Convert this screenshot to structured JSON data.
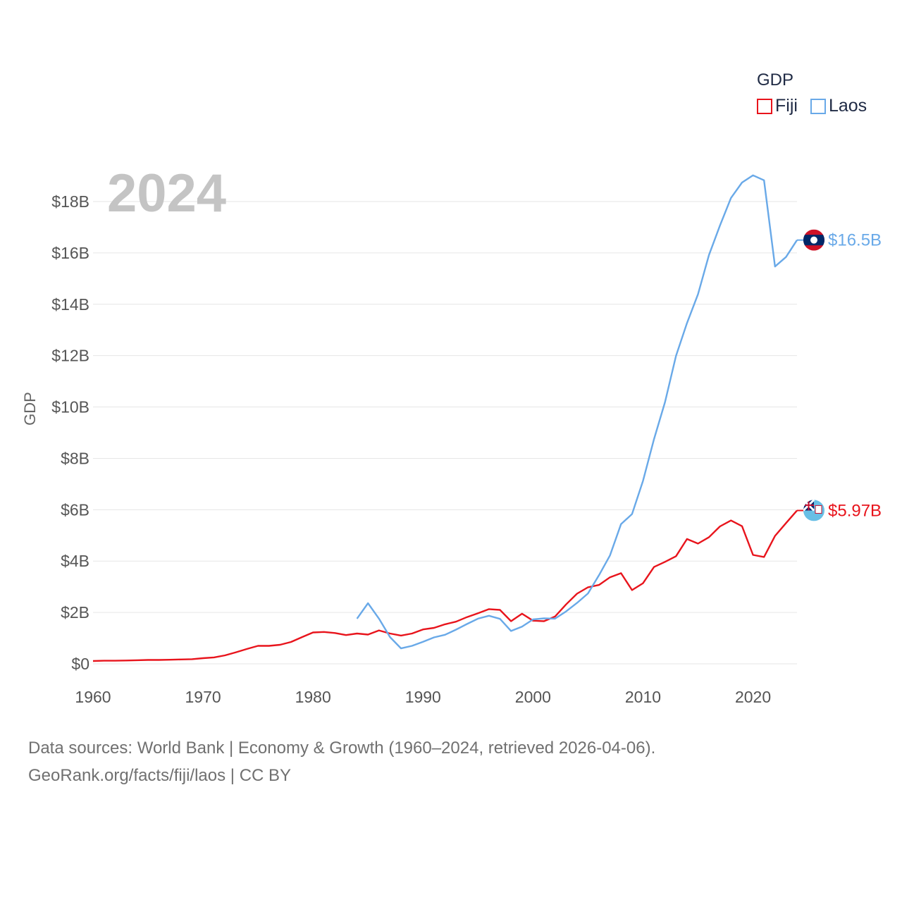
{
  "chart_data": {
    "type": "line",
    "year_label": "2024",
    "ylabel": "GDP",
    "xlim": [
      1960,
      2024
    ],
    "ylim": [
      0,
      18
    ],
    "y_unit": "billion USD",
    "x_ticks": [
      1960,
      1970,
      1980,
      1990,
      2000,
      2010,
      2020
    ],
    "y_ticks": [
      0,
      2,
      4,
      6,
      8,
      10,
      12,
      14,
      16,
      18
    ],
    "y_tick_labels": [
      "$0",
      "$2B",
      "$4B",
      "$6B",
      "$8B",
      "$10B",
      "$12B",
      "$14B",
      "$16B",
      "$18B"
    ],
    "legend": {
      "title": "GDP",
      "position": "top-right"
    },
    "series": [
      {
        "name": "Fiji",
        "color": "#e8141c",
        "end_label": "$5.97B",
        "end_value": 5.97,
        "flag_icon": "fiji-flag-icon",
        "points": [
          [
            1960,
            0.11
          ],
          [
            1961,
            0.12
          ],
          [
            1962,
            0.12
          ],
          [
            1963,
            0.13
          ],
          [
            1964,
            0.14
          ],
          [
            1965,
            0.15
          ],
          [
            1966,
            0.15
          ],
          [
            1967,
            0.16
          ],
          [
            1968,
            0.17
          ],
          [
            1969,
            0.18
          ],
          [
            1970,
            0.22
          ],
          [
            1971,
            0.25
          ],
          [
            1972,
            0.33
          ],
          [
            1973,
            0.45
          ],
          [
            1974,
            0.58
          ],
          [
            1975,
            0.7
          ],
          [
            1976,
            0.7
          ],
          [
            1977,
            0.74
          ],
          [
            1978,
            0.85
          ],
          [
            1979,
            1.04
          ],
          [
            1980,
            1.22
          ],
          [
            1981,
            1.24
          ],
          [
            1982,
            1.2
          ],
          [
            1983,
            1.12
          ],
          [
            1984,
            1.18
          ],
          [
            1985,
            1.14
          ],
          [
            1986,
            1.3
          ],
          [
            1987,
            1.18
          ],
          [
            1988,
            1.1
          ],
          [
            1989,
            1.18
          ],
          [
            1990,
            1.34
          ],
          [
            1991,
            1.4
          ],
          [
            1992,
            1.54
          ],
          [
            1993,
            1.64
          ],
          [
            1994,
            1.82
          ],
          [
            1995,
            1.97
          ],
          [
            1996,
            2.13
          ],
          [
            1997,
            2.1
          ],
          [
            1998,
            1.66
          ],
          [
            1999,
            1.95
          ],
          [
            2000,
            1.68
          ],
          [
            2001,
            1.66
          ],
          [
            2002,
            1.84
          ],
          [
            2003,
            2.31
          ],
          [
            2004,
            2.73
          ],
          [
            2005,
            2.98
          ],
          [
            2006,
            3.07
          ],
          [
            2007,
            3.37
          ],
          [
            2008,
            3.53
          ],
          [
            2009,
            2.87
          ],
          [
            2010,
            3.14
          ],
          [
            2011,
            3.77
          ],
          [
            2012,
            3.97
          ],
          [
            2013,
            4.19
          ],
          [
            2014,
            4.86
          ],
          [
            2015,
            4.68
          ],
          [
            2016,
            4.93
          ],
          [
            2017,
            5.35
          ],
          [
            2018,
            5.58
          ],
          [
            2019,
            5.36
          ],
          [
            2020,
            4.24
          ],
          [
            2021,
            4.16
          ],
          [
            2022,
            4.98
          ],
          [
            2023,
            5.48
          ],
          [
            2024,
            5.97
          ]
        ]
      },
      {
        "name": "Laos",
        "color": "#69a9e8",
        "end_label": "$16.5B",
        "end_value": 16.5,
        "flag_icon": "laos-flag-icon",
        "points": [
          [
            1984,
            1.76
          ],
          [
            1985,
            2.36
          ],
          [
            1986,
            1.76
          ],
          [
            1987,
            1.04
          ],
          [
            1988,
            0.6
          ],
          [
            1989,
            0.7
          ],
          [
            1990,
            0.86
          ],
          [
            1991,
            1.03
          ],
          [
            1992,
            1.13
          ],
          [
            1993,
            1.33
          ],
          [
            1994,
            1.55
          ],
          [
            1995,
            1.76
          ],
          [
            1996,
            1.87
          ],
          [
            1997,
            1.75
          ],
          [
            1998,
            1.28
          ],
          [
            1999,
            1.45
          ],
          [
            2000,
            1.73
          ],
          [
            2001,
            1.77
          ],
          [
            2002,
            1.76
          ],
          [
            2003,
            2.04
          ],
          [
            2004,
            2.37
          ],
          [
            2005,
            2.74
          ],
          [
            2006,
            3.45
          ],
          [
            2007,
            4.22
          ],
          [
            2008,
            5.44
          ],
          [
            2009,
            5.83
          ],
          [
            2010,
            7.13
          ],
          [
            2011,
            8.75
          ],
          [
            2012,
            10.19
          ],
          [
            2013,
            11.99
          ],
          [
            2014,
            13.27
          ],
          [
            2015,
            14.39
          ],
          [
            2016,
            15.92
          ],
          [
            2017,
            17.07
          ],
          [
            2018,
            18.14
          ],
          [
            2019,
            18.74
          ],
          [
            2020,
            19.02
          ],
          [
            2021,
            18.83
          ],
          [
            2022,
            15.47
          ],
          [
            2023,
            15.84
          ],
          [
            2024,
            16.5
          ]
        ]
      }
    ]
  },
  "footer": {
    "line1": "Data sources: World Bank | Economy & Growth (1960–2024, retrieved 2026-04-06).",
    "line2": "GeoRank.org/facts/fiji/laos | CC BY"
  }
}
